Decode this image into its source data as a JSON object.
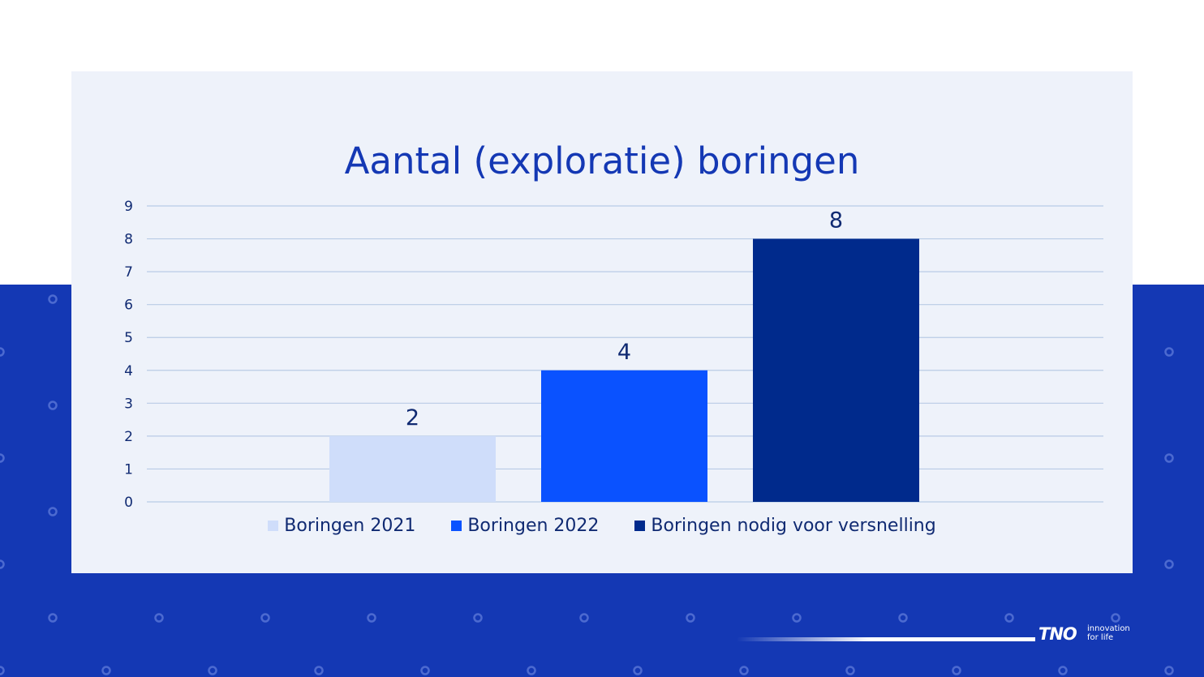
{
  "colors": {
    "band": "#1438b4",
    "card": "#eef2fa",
    "gridline": "#b9cbe6",
    "axis_text": "#102a72",
    "title": "#1438b4",
    "dot": "#4c6ad0"
  },
  "chart_data": {
    "type": "bar",
    "title": "Aantal (exploratie) boringen",
    "ylim": [
      0,
      9
    ],
    "yticks": [
      "0",
      "1",
      "2",
      "3",
      "4",
      "5",
      "6",
      "7",
      "8",
      "9"
    ],
    "grid": true,
    "legend_position": "bottom",
    "series": [
      {
        "name": "Boringen 2021",
        "values": [
          2
        ],
        "color": "#cfddfa"
      },
      {
        "name": "Boringen 2022",
        "values": [
          4
        ],
        "color": "#0a52ff"
      },
      {
        "name": "Boringen nodig voor versnelling",
        "values": [
          8
        ],
        "color": "#002a8c"
      }
    ]
  },
  "logo": {
    "mark": "TNO",
    "tagline_1": "innovation",
    "tagline_2": "for life"
  }
}
